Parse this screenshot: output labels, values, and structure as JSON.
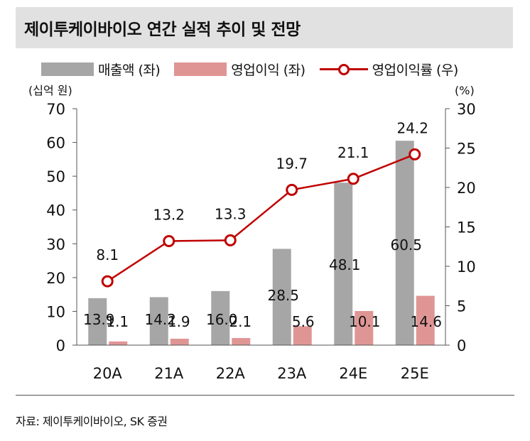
{
  "title": "제이투케이바이오 연간 실적 추이 및 전망",
  "legend": {
    "revenue": "매출액 (좌)",
    "operating_profit": "영업이익 (좌)",
    "operating_margin": "영업이익률 (우)"
  },
  "source": "자료: 제이투케이바이오, SK 증권",
  "colors": {
    "revenue": "#a6a6a6",
    "operating_profit": "#e09595",
    "margin": "#c00000"
  },
  "chart_data": {
    "type": "bar",
    "categories": [
      "20A",
      "21A",
      "22A",
      "23A",
      "24E",
      "25E"
    ],
    "series": [
      {
        "name": "매출액 (좌)",
        "axis": "left",
        "type": "bar",
        "values": [
          13.9,
          14.2,
          16.0,
          28.5,
          48.1,
          60.5
        ]
      },
      {
        "name": "영업이익 (좌)",
        "axis": "left",
        "type": "bar",
        "values": [
          1.1,
          1.9,
          2.1,
          5.6,
          10.1,
          14.6
        ]
      },
      {
        "name": "영업이익률 (우)",
        "axis": "right",
        "type": "line",
        "values": [
          8.1,
          13.2,
          13.3,
          19.7,
          21.1,
          24.2
        ]
      }
    ],
    "left_axis": {
      "label": "(십억 원)",
      "min": 0,
      "max": 70,
      "ticks": [
        0,
        10,
        20,
        30,
        40,
        50,
        60,
        70
      ]
    },
    "right_axis": {
      "label": "(%)",
      "min": 0,
      "max": 30,
      "ticks": [
        0,
        5,
        10,
        15,
        20,
        25,
        30
      ]
    },
    "data_labels": {
      "revenue": [
        "13.9",
        "14.2",
        "16.0",
        "28.5",
        "48.1",
        "60.5"
      ],
      "operating_profit": [
        "1.1",
        "1.9",
        "2.1",
        "5.6",
        "10.1",
        "14.6"
      ],
      "margin": [
        "8.1",
        "13.2",
        "13.3",
        "19.7",
        "21.1",
        "24.2"
      ]
    },
    "grid": false,
    "legend_position": "top"
  }
}
